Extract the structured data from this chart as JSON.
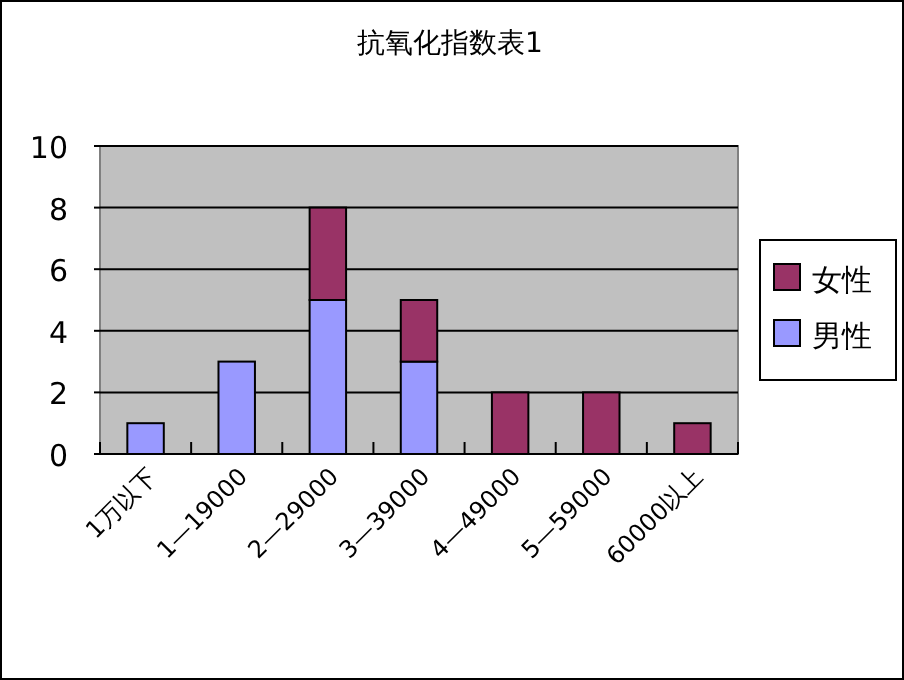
{
  "chart_data": {
    "type": "bar",
    "stacked": true,
    "title": "抗氧化指数表1",
    "categories": [
      "1万以下",
      "1—19000",
      "2—29000",
      "3—39000",
      "4—49000",
      "5—59000",
      "60000以上"
    ],
    "series": [
      {
        "name": "男性",
        "color": "#9999ff",
        "values": [
          1,
          3,
          5,
          3,
          0,
          0,
          0
        ]
      },
      {
        "name": "女性",
        "color": "#993366",
        "values": [
          0,
          0,
          3,
          2,
          2,
          2,
          1
        ]
      }
    ],
    "ylim": [
      0,
      10
    ],
    "yticks": [
      0,
      2,
      4,
      6,
      8,
      10
    ],
    "grid": "y",
    "legend": "right"
  }
}
